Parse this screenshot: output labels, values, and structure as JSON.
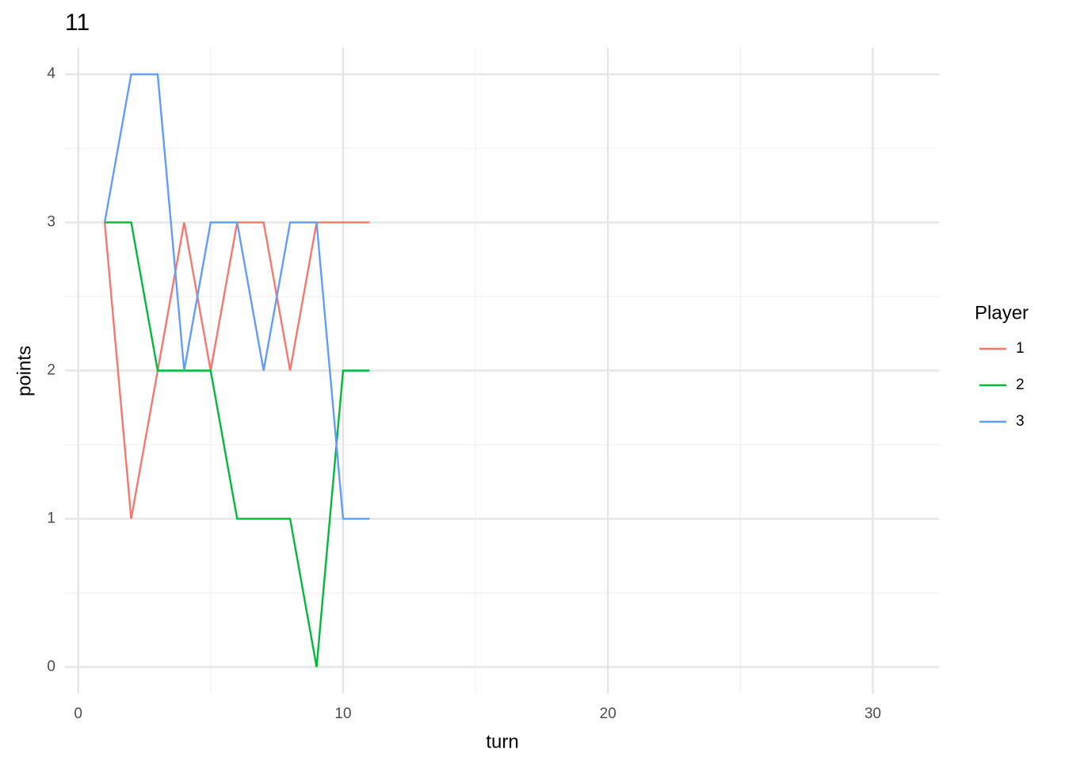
{
  "chart_data": {
    "type": "line",
    "title": "11",
    "x_label": "turn",
    "y_label": "points",
    "x": [
      1,
      2,
      3,
      4,
      5,
      6,
      7,
      8,
      9,
      10,
      11
    ],
    "series": [
      {
        "name": "1",
        "color": "#F8766D",
        "values": [
          3,
          1,
          2,
          3,
          2,
          3,
          3,
          2,
          3,
          3,
          3
        ]
      },
      {
        "name": "2",
        "color": "#00BA38",
        "values": [
          3,
          3,
          2,
          2,
          2,
          1,
          1,
          1,
          0,
          2,
          2
        ]
      },
      {
        "name": "3",
        "color": "#619CFF",
        "values": [
          3,
          4,
          4,
          2,
          3,
          3,
          2,
          3,
          3,
          1,
          1
        ]
      }
    ],
    "legend_title": "Player",
    "legend_position": "right",
    "xlim": [
      -0.5,
      32.5
    ],
    "xticks": [
      0,
      10,
      20,
      30
    ],
    "x_minor_ticks": [
      5,
      15,
      25
    ],
    "ylim": [
      -0.18,
      4.18
    ],
    "yticks": [
      0,
      1,
      2,
      3,
      4
    ],
    "y_minor_ticks": [
      0.5,
      1.5,
      2.5,
      3.5
    ],
    "grid": true
  }
}
